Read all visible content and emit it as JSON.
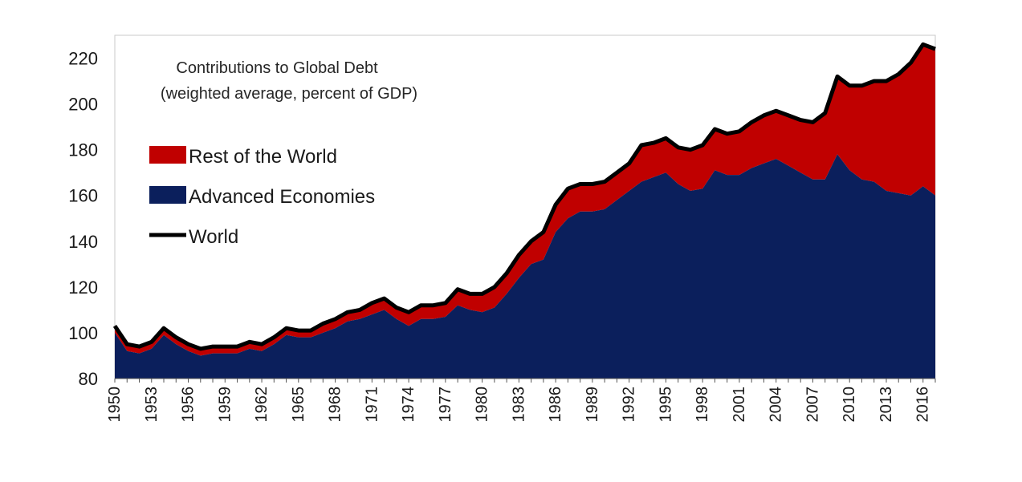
{
  "chart_data": {
    "type": "area",
    "title_lines": [
      "Contributions to Global Debt",
      "(weighted average, percent of GDP)"
    ],
    "xlabel": "",
    "ylabel": "",
    "ylim": [
      80,
      230
    ],
    "yticks": [
      80,
      100,
      120,
      140,
      160,
      180,
      200,
      220
    ],
    "xtick_labels": [
      "1950",
      "1953",
      "1956",
      "1959",
      "1962",
      "1965",
      "1968",
      "1971",
      "1974",
      "1977",
      "1980",
      "1983",
      "1986",
      "1989",
      "1992",
      "1995",
      "1998",
      "2001",
      "2004",
      "2007",
      "2010",
      "2013",
      "2016"
    ],
    "grid": false,
    "legend_position": "left",
    "x": [
      1950,
      1951,
      1952,
      1953,
      1954,
      1955,
      1956,
      1957,
      1958,
      1959,
      1960,
      1961,
      1962,
      1963,
      1964,
      1965,
      1966,
      1967,
      1968,
      1969,
      1970,
      1971,
      1972,
      1973,
      1974,
      1975,
      1976,
      1977,
      1978,
      1979,
      1980,
      1981,
      1982,
      1983,
      1984,
      1985,
      1986,
      1987,
      1988,
      1989,
      1990,
      1991,
      1992,
      1993,
      1994,
      1995,
      1996,
      1997,
      1998,
      1999,
      2000,
      2001,
      2002,
      2003,
      2004,
      2005,
      2006,
      2007,
      2008,
      2009,
      2010,
      2011,
      2012,
      2013,
      2014,
      2015,
      2016,
      2017
    ],
    "series": [
      {
        "name": "Advanced Economies",
        "color": "#0b1f5c",
        "values": [
          100,
          92,
          91,
          93,
          99,
          95,
          92,
          90,
          91,
          91,
          91,
          93,
          92,
          95,
          99,
          98,
          98,
          100,
          102,
          105,
          106,
          108,
          110,
          106,
          103,
          106,
          106,
          107,
          112,
          110,
          109,
          111,
          117,
          124,
          130,
          132,
          144,
          150,
          153,
          153,
          154,
          158,
          162,
          166,
          168,
          170,
          165,
          162,
          163,
          171,
          169,
          169,
          172,
          174,
          176,
          173,
          170,
          167,
          167,
          178,
          171,
          167,
          166,
          162,
          161,
          160,
          164,
          160
        ]
      },
      {
        "name": "Rest of the World",
        "color": "#c00000",
        "values": [
          3,
          3,
          3,
          3,
          3,
          3,
          3,
          3,
          3,
          3,
          3,
          3,
          3,
          3,
          3,
          3,
          3,
          4,
          4,
          4,
          4,
          5,
          5,
          5,
          6,
          6,
          6,
          6,
          7,
          7,
          8,
          9,
          9,
          10,
          10,
          12,
          12,
          13,
          12,
          12,
          12,
          12,
          12,
          16,
          15,
          15,
          16,
          18,
          19,
          18,
          18,
          19,
          20,
          21,
          21,
          22,
          23,
          25,
          29,
          34,
          37,
          41,
          44,
          48,
          52,
          58,
          62,
          64
        ]
      },
      {
        "name": "World",
        "color": "#000000",
        "values": [
          103,
          95,
          94,
          96,
          102,
          98,
          95,
          93,
          94,
          94,
          94,
          96,
          95,
          98,
          102,
          101,
          101,
          104,
          106,
          109,
          110,
          113,
          115,
          111,
          109,
          112,
          112,
          113,
          119,
          117,
          117,
          120,
          126,
          134,
          140,
          144,
          156,
          163,
          165,
          165,
          166,
          170,
          174,
          182,
          183,
          185,
          181,
          180,
          182,
          189,
          187,
          188,
          192,
          195,
          197,
          195,
          193,
          192,
          196,
          212,
          208,
          208,
          210,
          210,
          213,
          218,
          226,
          224
        ]
      }
    ]
  }
}
